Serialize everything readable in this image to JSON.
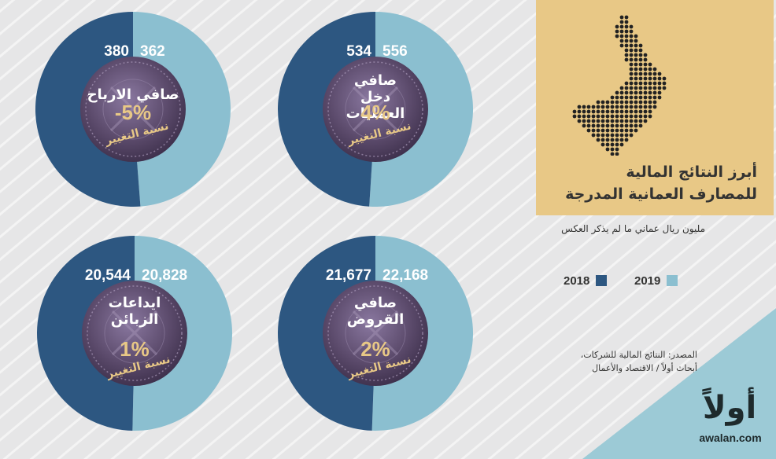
{
  "title_lines": [
    "أبرز النتائج المالية",
    "للمصارف العمانية المدرجة"
  ],
  "subtitle": "مليون ريال عماني ما لم يذكر العكس",
  "legend": [
    {
      "label": "2019",
      "color": "#8bbfd0"
    },
    {
      "label": "2018",
      "color": "#2d5781"
    }
  ],
  "change_label": "نسبة التغيير",
  "source_lines": [
    "المصدر: النتائج المالية للشركات،",
    "أبحاث أولاً / الاقتصاد والأعمال"
  ],
  "brand": {
    "logo_text": "أولاً",
    "site": "awalan.com"
  },
  "colors": {
    "y2018": "#2d5781",
    "y2019": "#8bbfd0",
    "gold": "#e8c886",
    "coin": "#5b4a6b",
    "dark": "#333332"
  },
  "chart_data": [
    {
      "type": "pie",
      "title": "صافي الارباح",
      "series": [
        {
          "name": "2018",
          "value": 380,
          "label": "380"
        },
        {
          "name": "2019",
          "value": 362,
          "label": "362"
        }
      ],
      "change": "-5%"
    },
    {
      "type": "pie",
      "title": "صافي دخل العمليات",
      "series": [
        {
          "name": "2018",
          "value": 534,
          "label": "534"
        },
        {
          "name": "2019",
          "value": 556,
          "label": "556"
        }
      ],
      "change": "4%"
    },
    {
      "type": "pie",
      "title": "ايداعات الزبائن",
      "series": [
        {
          "name": "2018",
          "value": 20544,
          "label": "20,544"
        },
        {
          "name": "2019",
          "value": 20828,
          "label": "20,828"
        }
      ],
      "change": "1%"
    },
    {
      "type": "pie",
      "title": "صافي القروض",
      "series": [
        {
          "name": "2018",
          "value": 21677,
          "label": "21,677"
        },
        {
          "name": "2019",
          "value": 22168,
          "label": "22,168"
        }
      ],
      "change": "2%"
    }
  ]
}
